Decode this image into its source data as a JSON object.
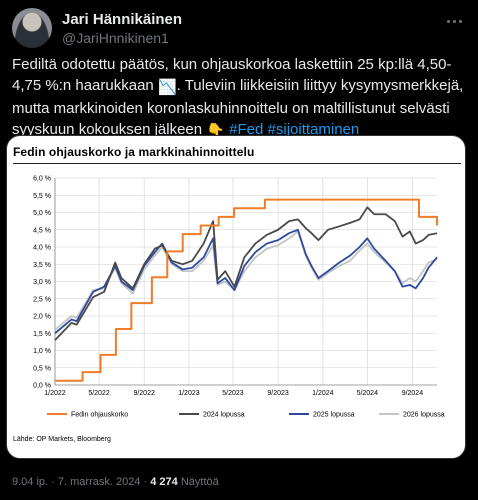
{
  "author": {
    "name": "Jari Hännikäinen",
    "handle": "@JariHnnikinen1"
  },
  "tweet": {
    "text_part1": "Fediltä odotettu päätös, kun ohjauskorkoa laskettiin 25 kp:llä 4,50-4,75 %:n haarukkaan ",
    "emoji1": "📉",
    "text_part2": ". Tuleviin liikkeisiin liittyy kysymysmerkkejä, mutta markkinoiden koronlaskuhinnoittelu on maltillistunut selvästi syyskuun kokouksen jälkeen ",
    "emoji2": "👇",
    "hashtag1": "#Fed",
    "hashtag2": "#sijoittaminen"
  },
  "meta": {
    "time": "9.04 ip.",
    "separator": "·",
    "date": "7. marrask. 2024",
    "views": "4 274",
    "views_label": "Näyttöä"
  },
  "icons": {
    "more": "more-dots-icon",
    "emoji1": "chart-decreasing-emoji",
    "emoji2": "pointing-down-emoji"
  },
  "chart_data": {
    "type": "line",
    "title": "Fedin ohjauskorko ja markkinahinnoittelu",
    "source": "Lähde: OP Markets, Bloomberg",
    "ylim": [
      0,
      6
    ],
    "xlim": [
      "2022-01-01",
      "2024-11-07"
    ],
    "y_ticks": [
      "0,0 %",
      "0,5 %",
      "1,0 %",
      "1,5 %",
      "2,0 %",
      "2,5 %",
      "3,0 %",
      "3,5 %",
      "4,0 %",
      "4,5 %",
      "5,0 %",
      "5,5 %",
      "6,0 %"
    ],
    "x_ticks": [
      "1/2022",
      "5/2022",
      "9/2022",
      "1/2023",
      "5/2023",
      "9/2023",
      "1/2024",
      "5/2024",
      "9/2024"
    ],
    "grid": true,
    "legend_position": "bottom",
    "series": [
      {
        "name": "Fedin ohjauskorko",
        "color": "#f07c28",
        "step": true,
        "points": [
          [
            "2022-01-01",
            0.125
          ],
          [
            "2022-03-17",
            0.375
          ],
          [
            "2022-05-05",
            0.875
          ],
          [
            "2022-06-16",
            1.625
          ],
          [
            "2022-07-28",
            2.375
          ],
          [
            "2022-09-22",
            3.125
          ],
          [
            "2022-11-03",
            3.875
          ],
          [
            "2022-12-15",
            4.375
          ],
          [
            "2023-02-02",
            4.625
          ],
          [
            "2023-03-23",
            4.875
          ],
          [
            "2023-05-04",
            5.125
          ],
          [
            "2023-07-27",
            5.375
          ],
          [
            "2024-09-19",
            4.875
          ],
          [
            "2024-11-07",
            4.625
          ]
        ]
      },
      {
        "name": "2024 lopussa",
        "color": "#4a4a4a",
        "points": [
          [
            "2022-01-01",
            1.3
          ],
          [
            "2022-02-15",
            1.8
          ],
          [
            "2022-03-01",
            1.75
          ],
          [
            "2022-04-15",
            2.55
          ],
          [
            "2022-05-15",
            2.7
          ],
          [
            "2022-06-14",
            3.55
          ],
          [
            "2022-07-01",
            3.1
          ],
          [
            "2022-08-01",
            2.8
          ],
          [
            "2022-09-01",
            3.5
          ],
          [
            "2022-09-30",
            3.95
          ],
          [
            "2022-10-20",
            4.05
          ],
          [
            "2022-11-15",
            3.6
          ],
          [
            "2022-12-15",
            3.5
          ],
          [
            "2023-01-10",
            3.6
          ],
          [
            "2023-02-10",
            4.1
          ],
          [
            "2023-03-08",
            4.75
          ],
          [
            "2023-03-20",
            3.05
          ],
          [
            "2023-04-10",
            3.3
          ],
          [
            "2023-05-05",
            2.85
          ],
          [
            "2023-06-01",
            3.7
          ],
          [
            "2023-07-01",
            4.1
          ],
          [
            "2023-08-01",
            4.35
          ],
          [
            "2023-09-01",
            4.5
          ],
          [
            "2023-10-01",
            4.75
          ],
          [
            "2023-10-25",
            4.8
          ],
          [
            "2023-11-15",
            4.55
          ],
          [
            "2023-12-01",
            4.4
          ],
          [
            "2023-12-20",
            4.2
          ],
          [
            "2024-01-15",
            4.5
          ],
          [
            "2024-02-15",
            4.6
          ],
          [
            "2024-03-15",
            4.7
          ],
          [
            "2024-04-10",
            4.8
          ],
          [
            "2024-05-01",
            5.15
          ],
          [
            "2024-05-20",
            4.95
          ],
          [
            "2024-06-20",
            4.95
          ],
          [
            "2024-07-15",
            4.75
          ],
          [
            "2024-08-05",
            4.3
          ],
          [
            "2024-08-25",
            4.45
          ],
          [
            "2024-09-10",
            4.1
          ],
          [
            "2024-09-30",
            4.2
          ],
          [
            "2024-10-15",
            4.35
          ],
          [
            "2024-11-07",
            4.4
          ]
        ]
      },
      {
        "name": "2025 lopussa",
        "color": "#2e4a9e",
        "points": [
          [
            "2022-01-01",
            1.5
          ],
          [
            "2022-02-15",
            1.9
          ],
          [
            "2022-03-01",
            1.85
          ],
          [
            "2022-04-15",
            2.7
          ],
          [
            "2022-05-15",
            2.85
          ],
          [
            "2022-06-14",
            3.45
          ],
          [
            "2022-07-01",
            3.0
          ],
          [
            "2022-08-01",
            2.75
          ],
          [
            "2022-09-01",
            3.45
          ],
          [
            "2022-09-30",
            3.85
          ],
          [
            "2022-10-20",
            4.1
          ],
          [
            "2022-11-15",
            3.55
          ],
          [
            "2022-12-15",
            3.35
          ],
          [
            "2023-01-10",
            3.4
          ],
          [
            "2023-02-10",
            3.7
          ],
          [
            "2023-03-08",
            4.25
          ],
          [
            "2023-03-20",
            2.95
          ],
          [
            "2023-04-10",
            3.1
          ],
          [
            "2023-05-05",
            2.75
          ],
          [
            "2023-06-01",
            3.45
          ],
          [
            "2023-07-01",
            3.85
          ],
          [
            "2023-08-01",
            4.1
          ],
          [
            "2023-09-01",
            4.2
          ],
          [
            "2023-10-01",
            4.4
          ],
          [
            "2023-10-25",
            4.5
          ],
          [
            "2023-11-15",
            3.8
          ],
          [
            "2023-12-01",
            3.45
          ],
          [
            "2023-12-20",
            3.1
          ],
          [
            "2024-01-15",
            3.3
          ],
          [
            "2024-02-15",
            3.55
          ],
          [
            "2024-03-15",
            3.75
          ],
          [
            "2024-04-10",
            4.0
          ],
          [
            "2024-05-01",
            4.25
          ],
          [
            "2024-05-20",
            3.95
          ],
          [
            "2024-06-20",
            3.6
          ],
          [
            "2024-07-15",
            3.3
          ],
          [
            "2024-08-05",
            2.85
          ],
          [
            "2024-08-25",
            2.9
          ],
          [
            "2024-09-10",
            2.8
          ],
          [
            "2024-09-30",
            3.1
          ],
          [
            "2024-10-15",
            3.4
          ],
          [
            "2024-11-07",
            3.7
          ]
        ]
      },
      {
        "name": "2026 lopussa",
        "color": "#c4c4c4",
        "points": [
          [
            "2022-01-01",
            1.6
          ],
          [
            "2022-02-15",
            2.0
          ],
          [
            "2022-03-01",
            1.95
          ],
          [
            "2022-04-15",
            2.75
          ],
          [
            "2022-05-15",
            2.8
          ],
          [
            "2022-06-14",
            3.4
          ],
          [
            "2022-07-01",
            2.95
          ],
          [
            "2022-08-01",
            2.65
          ],
          [
            "2022-09-01",
            3.35
          ],
          [
            "2022-09-30",
            3.75
          ],
          [
            "2022-10-20",
            4.0
          ],
          [
            "2022-11-15",
            3.5
          ],
          [
            "2022-12-15",
            3.3
          ],
          [
            "2023-01-10",
            3.3
          ],
          [
            "2023-02-10",
            3.6
          ],
          [
            "2023-03-08",
            4.05
          ],
          [
            "2023-03-20",
            2.9
          ],
          [
            "2023-04-10",
            3.0
          ],
          [
            "2023-05-05",
            2.75
          ],
          [
            "2023-06-01",
            3.3
          ],
          [
            "2023-07-01",
            3.7
          ],
          [
            "2023-08-01",
            3.95
          ],
          [
            "2023-09-01",
            4.05
          ],
          [
            "2023-10-01",
            4.25
          ],
          [
            "2023-10-25",
            4.45
          ],
          [
            "2023-11-15",
            3.75
          ],
          [
            "2023-12-01",
            3.4
          ],
          [
            "2023-12-20",
            3.05
          ],
          [
            "2024-01-15",
            3.25
          ],
          [
            "2024-02-15",
            3.45
          ],
          [
            "2024-03-15",
            3.6
          ],
          [
            "2024-04-10",
            3.9
          ],
          [
            "2024-05-01",
            4.1
          ],
          [
            "2024-05-20",
            3.85
          ],
          [
            "2024-06-20",
            3.55
          ],
          [
            "2024-07-15",
            3.3
          ],
          [
            "2024-08-05",
            2.95
          ],
          [
            "2024-08-25",
            3.1
          ],
          [
            "2024-09-10",
            3.0
          ],
          [
            "2024-09-30",
            3.3
          ],
          [
            "2024-10-15",
            3.55
          ],
          [
            "2024-11-07",
            3.65
          ]
        ]
      }
    ]
  }
}
